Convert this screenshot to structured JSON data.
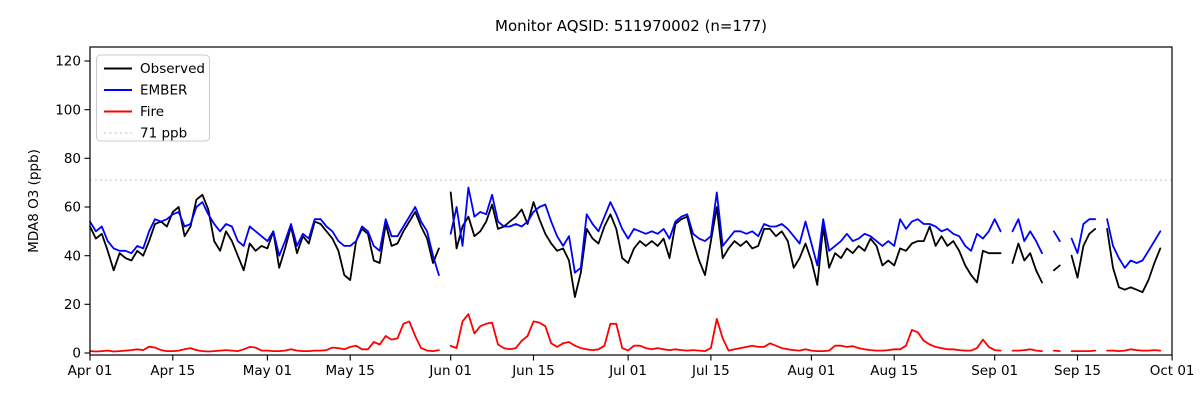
{
  "chart_data": {
    "type": "line",
    "title": "Monitor AQSID: 511970002 (n=177)",
    "ylabel": "MDA8 O3 (ppb)",
    "xlabel": "",
    "ylim": [
      0,
      126
    ],
    "yticks": [
      0,
      20,
      40,
      60,
      80,
      100,
      120
    ],
    "x_start_date": "Apr 01",
    "x_end_date": "Oct 01",
    "n_points": 177,
    "grid": false,
    "legend_position": "upper left",
    "xticks": [
      {
        "label": "Apr 01",
        "day": 0
      },
      {
        "label": "Apr 15",
        "day": 14
      },
      {
        "label": "May 01",
        "day": 30
      },
      {
        "label": "May 15",
        "day": 44
      },
      {
        "label": "Jun 01",
        "day": 61
      },
      {
        "label": "Jun 15",
        "day": 75
      },
      {
        "label": "Jul 01",
        "day": 91
      },
      {
        "label": "Jul 15",
        "day": 105
      },
      {
        "label": "Aug 01",
        "day": 122
      },
      {
        "label": "Aug 15",
        "day": 136
      },
      {
        "label": "Sep 01",
        "day": 153
      },
      {
        "label": "Sep 15",
        "day": 167
      },
      {
        "label": "Oct 01",
        "day": 183
      }
    ],
    "reference_line": {
      "label": "71 ppb",
      "value": 71,
      "color": "#d3d3d3",
      "style": "dotted"
    },
    "legend": [
      {
        "label": "Observed",
        "color": "#000000",
        "dash": ""
      },
      {
        "label": "EMBER",
        "color": "#0000ff",
        "dash": ""
      },
      {
        "label": "Fire",
        "color": "#ff0000",
        "dash": ""
      },
      {
        "label": "71 ppb",
        "color": "#d3d3d3",
        "dash": "2 3.3"
      }
    ],
    "series": [
      {
        "name": "Observed",
        "color": "#000000",
        "values": [
          52,
          47,
          49,
          42,
          34,
          41,
          39,
          38,
          42,
          40,
          46,
          53,
          54,
          52,
          58,
          60,
          48,
          52,
          63,
          65,
          59,
          46,
          42,
          50,
          46,
          40,
          34,
          45,
          42,
          44,
          43,
          50,
          35,
          43,
          52,
          41,
          48,
          45,
          54,
          53,
          50,
          47,
          42,
          32,
          30,
          46,
          51,
          49,
          38,
          37,
          53,
          44,
          45,
          50,
          54,
          58,
          52,
          47,
          37,
          43,
          null,
          66,
          43,
          52,
          56,
          48,
          50,
          54,
          61,
          51,
          52,
          54,
          56,
          59,
          53,
          62,
          55,
          49,
          45,
          42,
          43,
          38,
          23,
          33,
          51,
          47,
          45,
          52,
          57,
          51,
          39,
          37,
          43,
          46,
          44,
          46,
          44,
          47,
          39,
          53,
          55,
          56,
          46,
          38,
          32,
          46,
          60,
          39,
          43,
          46,
          44,
          46,
          43,
          44,
          51,
          51,
          48,
          50,
          46,
          35,
          39,
          45,
          38,
          28,
          52,
          35,
          41,
          39,
          43,
          41,
          44,
          42,
          47,
          44,
          36,
          38,
          36,
          43,
          42,
          45,
          46,
          46,
          52,
          44,
          48,
          44,
          46,
          42,
          36,
          32,
          29,
          42,
          41,
          41,
          41,
          null,
          37,
          45,
          38,
          41,
          34,
          29,
          null,
          34,
          36,
          null,
          40,
          31,
          44,
          49,
          51,
          null,
          51,
          35,
          27,
          26,
          27,
          26,
          25,
          30,
          37,
          43,
          null
        ]
      },
      {
        "name": "EMBER",
        "color": "#0000ff",
        "values": [
          54,
          50,
          52,
          46,
          43,
          42,
          42,
          41,
          44,
          43,
          50,
          55,
          54,
          55,
          57,
          58,
          52,
          53,
          60,
          62,
          57,
          53,
          50,
          53,
          52,
          46,
          44,
          52,
          50,
          48,
          46,
          50,
          40,
          46,
          53,
          44,
          49,
          47,
          55,
          55,
          52,
          50,
          46,
          44,
          44,
          46,
          52,
          50,
          44,
          42,
          55,
          48,
          48,
          52,
          56,
          60,
          54,
          50,
          40,
          32,
          null,
          49,
          60,
          44,
          68,
          56,
          58,
          57,
          65,
          54,
          52,
          52,
          53,
          52,
          54,
          58,
          60,
          61,
          54,
          48,
          44,
          48,
          33,
          35,
          57,
          53,
          50,
          56,
          62,
          57,
          51,
          47,
          51,
          50,
          49,
          50,
          49,
          51,
          47,
          54,
          56,
          57,
          49,
          47,
          46,
          48,
          66,
          44,
          47,
          50,
          50,
          49,
          50,
          48,
          53,
          52,
          52,
          53,
          51,
          48,
          45,
          54,
          45,
          36,
          55,
          42,
          44,
          46,
          49,
          46,
          47,
          49,
          48,
          46,
          44,
          46,
          44,
          55,
          51,
          54,
          55,
          53,
          53,
          52,
          50,
          51,
          49,
          48,
          44,
          42,
          49,
          47,
          50,
          55,
          50,
          null,
          50,
          55,
          46,
          50,
          46,
          41,
          null,
          50,
          46,
          null,
          47,
          41,
          53,
          55,
          55,
          null,
          55,
          44,
          39,
          35,
          38,
          37,
          38,
          42,
          46,
          50,
          null
        ]
      },
      {
        "name": "Fire",
        "color": "#ff0000",
        "values": [
          0.8,
          0.6,
          0.8,
          1,
          0.6,
          0.8,
          1,
          1.2,
          1.5,
          1.2,
          2.6,
          2.2,
          1.2,
          0.8,
          0.8,
          1,
          1.5,
          2,
          1.2,
          0.8,
          0.6,
          0.8,
          1,
          1.2,
          1,
          0.8,
          1.5,
          2.5,
          2.2,
          1,
          1,
          0.8,
          0.8,
          1,
          1.5,
          1,
          0.8,
          0.8,
          1,
          1,
          1.2,
          2.2,
          2,
          1.5,
          2.5,
          3,
          1.5,
          1.5,
          4.5,
          3.5,
          7,
          5.5,
          6,
          12,
          13,
          7,
          2,
          1,
          0.8,
          1.2,
          null,
          2.9,
          2,
          13,
          16,
          8,
          11,
          12,
          12.5,
          3.5,
          2,
          1.5,
          2,
          5,
          7,
          13,
          12.5,
          11,
          4,
          2.5,
          4,
          4.5,
          3,
          2,
          1.5,
          1.2,
          1.5,
          3,
          12,
          12,
          2,
          1,
          3,
          3,
          2,
          1.5,
          2,
          1.5,
          1.2,
          1.5,
          1.2,
          1,
          1.2,
          1,
          0.8,
          2,
          14,
          6,
          1,
          1.5,
          2,
          2.5,
          3,
          2.5,
          2.5,
          4,
          3,
          2,
          1.5,
          1.2,
          1,
          1.5,
          1,
          0.8,
          0.8,
          1,
          3,
          3,
          2.5,
          2.8,
          2,
          1.5,
          1.2,
          1,
          1,
          1.2,
          1.5,
          1.5,
          3,
          9.5,
          8.5,
          5,
          3.5,
          2.5,
          2,
          1.5,
          1.5,
          1.2,
          1,
          1,
          2,
          5.5,
          2.5,
          1.2,
          1,
          null,
          1,
          1,
          1.2,
          1.5,
          1,
          0.8,
          null,
          1,
          0.8,
          null,
          0.8,
          0.8,
          0.8,
          0.8,
          1,
          null,
          1,
          1,
          0.8,
          1,
          1.5,
          1.2,
          1,
          1,
          1.2,
          1,
          null
        ]
      }
    ]
  }
}
